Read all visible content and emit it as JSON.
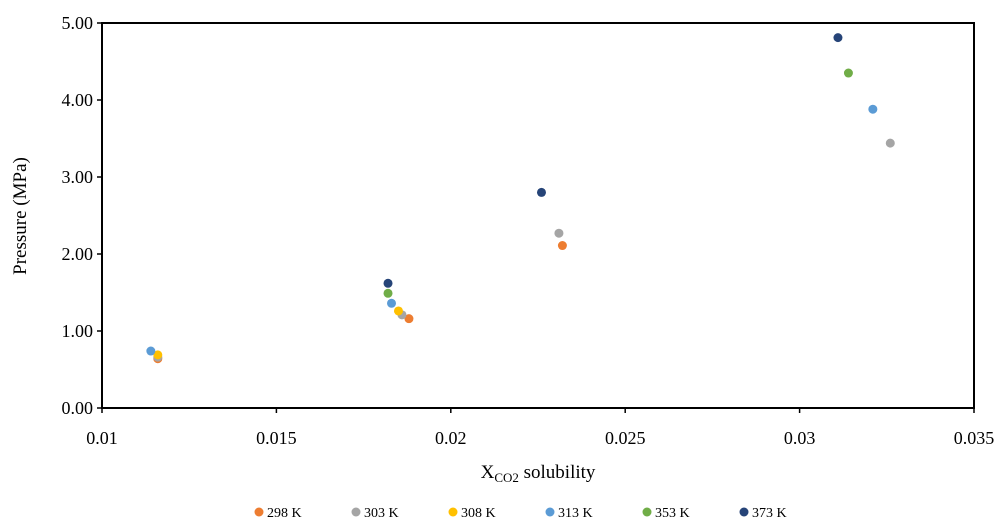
{
  "chart_data": {
    "type": "scatter",
    "xlabel": "X",
    "xlabel_subscript": "CO2",
    "xlabel_suffix": " solubility",
    "ylabel": "Pressure (MPa)",
    "xlim": [
      0.01,
      0.035
    ],
    "ylim": [
      0,
      5
    ],
    "x_ticks": [
      0.01,
      0.015,
      0.02,
      0.025,
      0.03,
      0.035
    ],
    "x_tick_labels": [
      "0.01",
      "0.015",
      "0.02",
      "0.025",
      "0.03",
      "0.035"
    ],
    "y_ticks": [
      0,
      1,
      2,
      3,
      4,
      5
    ],
    "y_tick_labels": [
      "0.00",
      "1.00",
      "2.00",
      "3.00",
      "4.00",
      "5.00"
    ],
    "grid": false,
    "legend_position": "bottom",
    "series": [
      {
        "name": "298 K",
        "color": "#ED7D31",
        "points": [
          [
            0.0116,
            0.64
          ],
          [
            0.0188,
            1.16
          ],
          [
            0.0232,
            2.11
          ]
        ]
      },
      {
        "name": "303 K",
        "color": "#A5A5A5",
        "points": [
          [
            0.0116,
            0.66
          ],
          [
            0.0186,
            1.21
          ],
          [
            0.0231,
            2.27
          ],
          [
            0.0326,
            3.44
          ]
        ]
      },
      {
        "name": "308 K",
        "color": "#FFC000",
        "points": [
          [
            0.0116,
            0.69
          ],
          [
            0.0185,
            1.26
          ]
        ]
      },
      {
        "name": "313 K",
        "color": "#5B9BD5",
        "points": [
          [
            0.0114,
            0.74
          ],
          [
            0.0183,
            1.36
          ],
          [
            0.0321,
            3.88
          ]
        ]
      },
      {
        "name": "353 K",
        "color": "#70AD47",
        "points": [
          [
            0.0182,
            1.49
          ],
          [
            0.0314,
            4.35
          ]
        ]
      },
      {
        "name": "373 K",
        "color": "#264478",
        "points": [
          [
            0.0182,
            1.62
          ],
          [
            0.0226,
            2.8
          ],
          [
            0.0311,
            4.81
          ]
        ]
      }
    ]
  }
}
